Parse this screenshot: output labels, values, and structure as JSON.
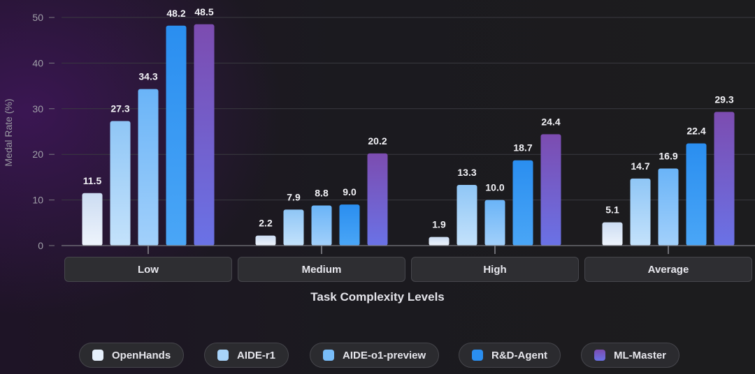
{
  "chart_data": {
    "type": "bar",
    "categories": [
      "Low",
      "Medium",
      "High",
      "Average"
    ],
    "series": [
      {
        "name": "OpenHands",
        "values": [
          11.5,
          2.2,
          1.9,
          5.1
        ],
        "color_top": "#ccdcf2",
        "color_bottom": "#eef4fc"
      },
      {
        "name": "AIDE-r1",
        "values": [
          27.3,
          7.9,
          13.3,
          14.7
        ],
        "color_top": "#8fc6f6",
        "color_bottom": "#c4e2fb"
      },
      {
        "name": "AIDE-o1-preview",
        "values": [
          34.3,
          8.8,
          10.0,
          16.9
        ],
        "color_top": "#6ab4f8",
        "color_bottom": "#a2d0fa"
      },
      {
        "name": "R&D-Agent",
        "values": [
          48.2,
          9.0,
          18.7,
          22.4
        ],
        "color_top": "#2a8ef0",
        "color_bottom": "#4aa6f6"
      },
      {
        "name": "ML-Master",
        "values": [
          48.5,
          20.2,
          24.4,
          29.3
        ],
        "color_top": "#7c4cb0",
        "color_bottom": "#6a72e6"
      }
    ],
    "xlabel": "Task Complexity Levels",
    "ylabel": "Medal Rate (%)",
    "ylim": [
      0,
      50
    ],
    "yticks": [
      "0",
      "10",
      "20",
      "30",
      "40",
      "50"
    ],
    "grid": true,
    "legend_position": "bottom"
  }
}
